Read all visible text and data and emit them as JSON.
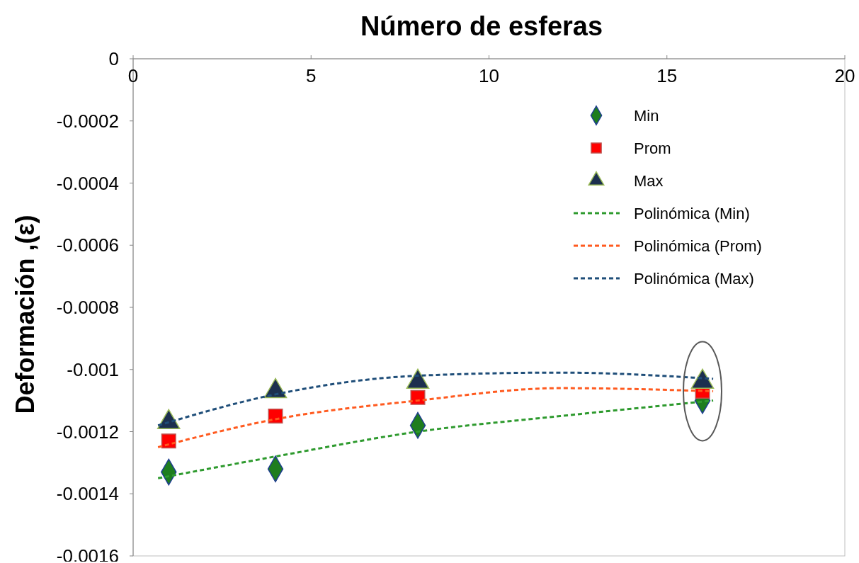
{
  "chart_data": {
    "type": "scatter",
    "title": "Número de esferas",
    "ylabel": "Deformación ,(ε)",
    "xlim": [
      0,
      20
    ],
    "xticks": [
      0,
      5,
      10,
      15,
      20
    ],
    "ylim": [
      -0.0016,
      0
    ],
    "yticks": [
      -0.0016,
      -0.0014,
      -0.0012,
      -0.001,
      -0.0008,
      -0.0006,
      -0.0004,
      -0.0002,
      0
    ],
    "grid": false,
    "legend": "top right",
    "series": [
      {
        "name": "Min",
        "marker": "diamond",
        "color": "#1e7d1e",
        "x": [
          1,
          4,
          8,
          16
        ],
        "values": [
          -0.00133,
          -0.00132,
          -0.00118,
          -0.0011
        ]
      },
      {
        "name": "Prom",
        "marker": "square",
        "color": "#ff0000",
        "x": [
          1,
          4,
          8,
          16
        ],
        "values": [
          -0.00123,
          -0.00115,
          -0.00109,
          -0.00107
        ]
      },
      {
        "name": "Max",
        "marker": "triangle",
        "color": "#1c2f4f",
        "x": [
          1,
          4,
          8,
          16
        ],
        "values": [
          -0.00117,
          -0.00107,
          -0.00104,
          -0.00104
        ]
      },
      {
        "name": "Polinómica (Min)",
        "type": "line",
        "line_style": "dashed",
        "color": "#2e9a2e",
        "x": [
          0.7,
          4,
          8,
          12,
          16.3
        ],
        "values": [
          -0.00135,
          -0.00128,
          -0.0012,
          -0.00115,
          -0.0011
        ]
      },
      {
        "name": "Polinómica (Prom)",
        "type": "line",
        "line_style": "dashed",
        "color": "#ff5a1f",
        "x": [
          0.7,
          4,
          8,
          12,
          16.3
        ],
        "values": [
          -0.00125,
          -0.00116,
          -0.0011,
          -0.00106,
          -0.00107
        ]
      },
      {
        "name": "Polinómica (Max)",
        "type": "line",
        "line_style": "dashed",
        "color": "#1f4e79",
        "x": [
          0.7,
          4,
          8,
          12,
          16.3
        ],
        "values": [
          -0.00118,
          -0.00108,
          -0.00102,
          -0.00101,
          -0.00103
        ]
      }
    ]
  }
}
